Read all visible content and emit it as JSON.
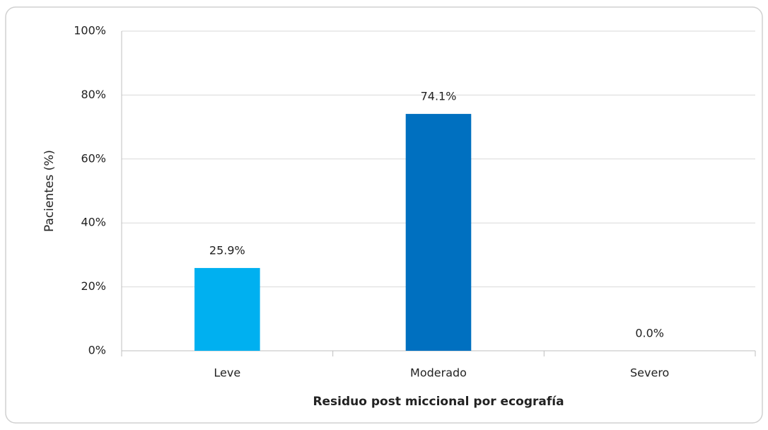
{
  "chart_data": {
    "type": "bar",
    "y_label": "Pacientes (%)",
    "x_label": "Residuo post miccional por ecografía",
    "categories": [
      "Leve",
      "Moderado",
      "Severo"
    ],
    "values": [
      25.9,
      74.1,
      0.0
    ],
    "value_labels": [
      "25.9%",
      "74.1%",
      "0.0%"
    ],
    "colors": [
      "#00b0f0",
      "#0070c0",
      "#0070c0"
    ],
    "ylim": [
      0,
      100
    ],
    "yticks": [
      {
        "value": 0,
        "label": "0%"
      },
      {
        "value": 20,
        "label": "20%"
      },
      {
        "value": 40,
        "label": "40%"
      },
      {
        "value": 60,
        "label": "60%"
      },
      {
        "value": 80,
        "label": "80%"
      },
      {
        "value": 100,
        "label": "100%"
      }
    ],
    "grid": true
  }
}
